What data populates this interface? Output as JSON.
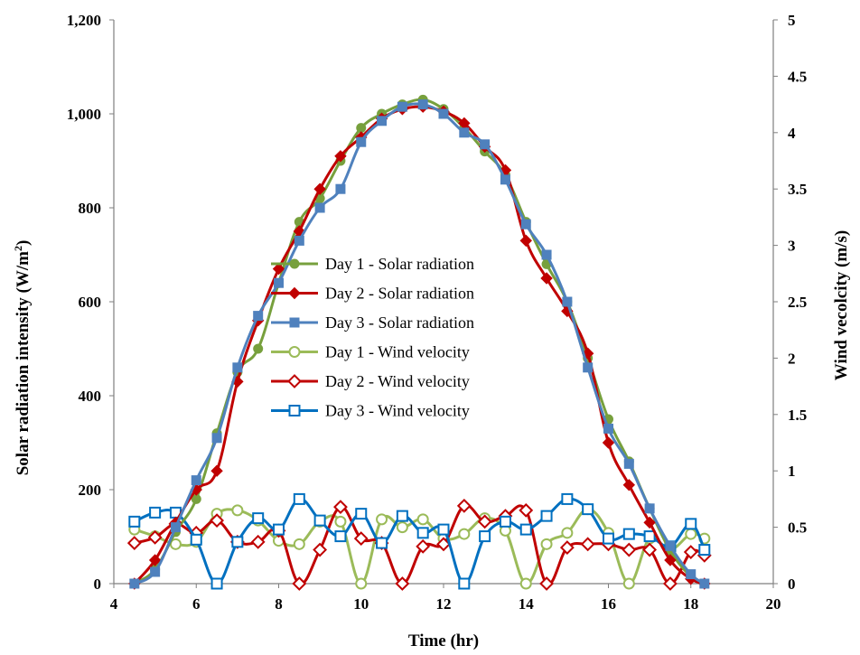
{
  "chart_data": {
    "type": "line",
    "title": "",
    "xlabel": "Time (hr)",
    "ylabel": "Solar radiation intensity (W/m²)",
    "ylabel_parts": [
      "Solar radiation intensity (W/m",
      "2",
      ")"
    ],
    "y2label": "Wind vecolcity (m/s)",
    "xlim": [
      4,
      20
    ],
    "ylim": [
      0,
      1200
    ],
    "y2lim": [
      0,
      5
    ],
    "x_ticks": [
      "4",
      "6",
      "8",
      "10",
      "12",
      "14",
      "16",
      "18",
      "20"
    ],
    "y_ticks": [
      "0",
      "200",
      "400",
      "600",
      "800",
      "1,000",
      "1,200"
    ],
    "y2_ticks": [
      "0",
      "0.5",
      "1",
      "1.5",
      "2",
      "2.5",
      "3",
      "3.5",
      "4",
      "4.5",
      "5"
    ],
    "grid": false,
    "legend_position": "center",
    "x": [
      4.5,
      5,
      5.5,
      6,
      6.5,
      7,
      7.5,
      8,
      8.5,
      9,
      9.5,
      10,
      10.5,
      11,
      11.5,
      12,
      12.5,
      13,
      13.5,
      14,
      14.5,
      15,
      15.5,
      16,
      16.5,
      17,
      17.5,
      18,
      18.33
    ],
    "series": [
      {
        "name": "Day 1 - Solar radiation",
        "axis": "left",
        "color": "#77a03d",
        "marker": "circle",
        "filled": true,
        "values": [
          0,
          30,
          110,
          180,
          320,
          450,
          500,
          640,
          770,
          820,
          900,
          970,
          1000,
          1020,
          1030,
          1010,
          970,
          920,
          870,
          770,
          680,
          600,
          480,
          350,
          260,
          160,
          70,
          15,
          0
        ]
      },
      {
        "name": "Day 2 - Solar radiation",
        "axis": "left",
        "color": "#c00000",
        "marker": "diamond",
        "filled": true,
        "values": [
          0,
          50,
          130,
          200,
          240,
          430,
          560,
          670,
          750,
          840,
          910,
          950,
          990,
          1010,
          1015,
          1005,
          980,
          930,
          880,
          730,
          650,
          580,
          490,
          300,
          210,
          130,
          50,
          10,
          0
        ]
      },
      {
        "name": "Day 3 - Solar radiation",
        "axis": "left",
        "color": "#4f81bd",
        "marker": "square",
        "filled": true,
        "values": [
          0,
          25,
          120,
          220,
          310,
          460,
          570,
          640,
          730,
          800,
          840,
          940,
          985,
          1015,
          1020,
          1000,
          960,
          935,
          860,
          765,
          700,
          600,
          460,
          330,
          255,
          160,
          80,
          20,
          0
        ]
      },
      {
        "name": "Day 1 - Wind velocity",
        "axis": "right",
        "color": "#9bbb59",
        "marker": "circle",
        "filled": false,
        "values": [
          0.48,
          0.42,
          0.35,
          0.37,
          0.62,
          0.65,
          0.56,
          0.38,
          0.35,
          0.55,
          0.55,
          0,
          0.57,
          0.5,
          0.57,
          0.4,
          0.44,
          0.58,
          0.47,
          0,
          0.35,
          0.45,
          0.66,
          0.45,
          0,
          0.4,
          0.3,
          0.44,
          0.4
        ]
      },
      {
        "name": "Day 2 - Wind velocity",
        "axis": "right",
        "color": "#c00000",
        "marker": "diamond",
        "filled": false,
        "values": [
          0.36,
          0.41,
          0.53,
          0.45,
          0.56,
          0.37,
          0.37,
          0.47,
          0,
          0.3,
          0.68,
          0.4,
          0.36,
          0,
          0.33,
          0.35,
          0.69,
          0.55,
          0.6,
          0.65,
          0,
          0.32,
          0.35,
          0.35,
          0.3,
          0.3,
          0,
          0.28,
          0.25
        ]
      },
      {
        "name": "Day 3 - Wind velocity",
        "axis": "right",
        "color": "#0070c0",
        "marker": "square",
        "filled": false,
        "values": [
          0.55,
          0.63,
          0.63,
          0.39,
          0,
          0.37,
          0.58,
          0.48,
          0.75,
          0.56,
          0.42,
          0.62,
          0.36,
          0.6,
          0.45,
          0.48,
          0,
          0.42,
          0.55,
          0.48,
          0.6,
          0.75,
          0.66,
          0.4,
          0.44,
          0.42,
          0.33,
          0.53,
          0.3
        ]
      }
    ]
  }
}
